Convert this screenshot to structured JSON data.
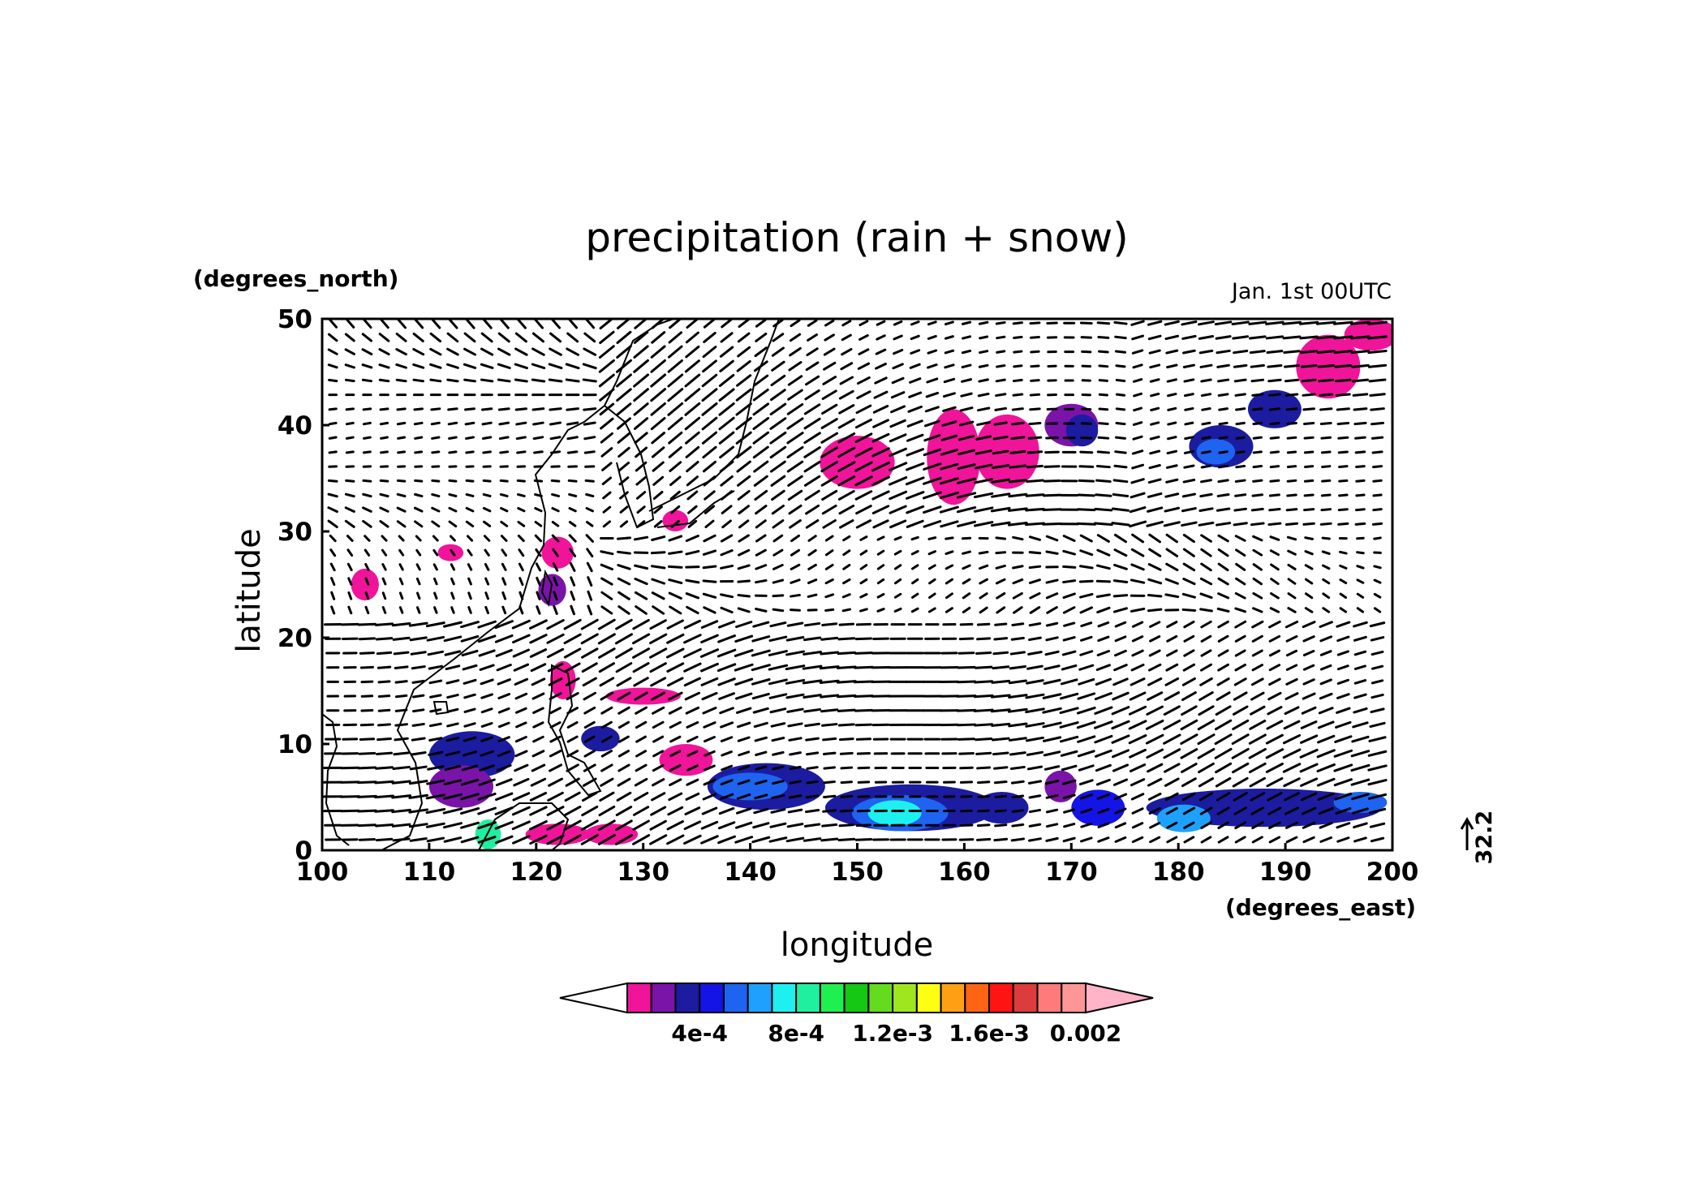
{
  "chart_data": {
    "type": "heatmap",
    "title": "precipitation (rain + snow)",
    "time_stamp": "Jan. 1st 00UTC",
    "xlabel": "longitude",
    "ylabel": "latitude",
    "x_unit": "(degrees_east)",
    "y_unit": "(degrees_north)",
    "xlim": [
      100,
      200
    ],
    "ylim": [
      0,
      50
    ],
    "x_ticks": [
      "100",
      "110",
      "120",
      "130",
      "140",
      "150",
      "160",
      "170",
      "180",
      "190",
      "200"
    ],
    "y_ticks": [
      "0",
      "10",
      "20",
      "30",
      "40",
      "50"
    ],
    "overlay": "wind vectors (arrows) and coastlines",
    "reference_vector": "32.2",
    "colorbar": {
      "orientation": "horizontal",
      "extend": "both",
      "levels": [
        0.0001,
        0.0002,
        0.0003,
        0.0004,
        0.0005,
        0.0006,
        0.0007,
        0.0008,
        0.0009,
        0.001,
        0.0011,
        0.0012,
        0.0013,
        0.0014,
        0.0015,
        0.0016,
        0.0017,
        0.0018,
        0.0019,
        0.002
      ],
      "colors": [
        "#ffffff",
        "#f0149a",
        "#7a14a8",
        "#1c1ca0",
        "#1414e6",
        "#1e64f0",
        "#1ea0ff",
        "#1ef0f0",
        "#1ef0a0",
        "#1ef050",
        "#14c814",
        "#64dc1e",
        "#a0e61e",
        "#ffff14",
        "#ffa014",
        "#ff6414",
        "#ff1414",
        "#dc3c3c",
        "#ff7a7a",
        "#ff9696",
        "#ffb4c8"
      ],
      "tick_labels": [
        {
          "value": 0.0004,
          "text": "4e-4"
        },
        {
          "value": 0.0008,
          "text": "8e-4"
        },
        {
          "value": 0.0012,
          "text": "1.2e-3"
        },
        {
          "value": 0.0016,
          "text": "1.6e-3"
        },
        {
          "value": 0.002,
          "text": "0.002"
        }
      ]
    },
    "precip_regions": [
      {
        "lon": 114,
        "lat": 9,
        "rx": 4,
        "ry": 2.2,
        "level": 3
      },
      {
        "lon": 113,
        "lat": 6,
        "rx": 3,
        "ry": 2,
        "level": 2
      },
      {
        "lon": 115.5,
        "lat": 1.5,
        "rx": 1.2,
        "ry": 1.4,
        "level": 8
      },
      {
        "lon": 122,
        "lat": 1.5,
        "rx": 3,
        "ry": 1,
        "level": 1
      },
      {
        "lon": 127,
        "lat": 1.5,
        "rx": 2.5,
        "ry": 1,
        "level": 1
      },
      {
        "lon": 126,
        "lat": 10.5,
        "rx": 1.8,
        "ry": 1.2,
        "level": 3
      },
      {
        "lon": 122,
        "lat": 28,
        "rx": 1.5,
        "ry": 1.5,
        "level": 1
      },
      {
        "lon": 121.5,
        "lat": 24.5,
        "rx": 1.3,
        "ry": 1.5,
        "level": 2
      },
      {
        "lon": 104,
        "lat": 25,
        "rx": 1.3,
        "ry": 1.5,
        "level": 1
      },
      {
        "lon": 112,
        "lat": 28,
        "rx": 1.2,
        "ry": 0.8,
        "level": 1
      },
      {
        "lon": 122.5,
        "lat": 16,
        "rx": 1.2,
        "ry": 1.8,
        "level": 1
      },
      {
        "lon": 130,
        "lat": 14.5,
        "rx": 3.5,
        "ry": 0.8,
        "level": 1
      },
      {
        "lon": 133,
        "lat": 31,
        "rx": 1.2,
        "ry": 1,
        "level": 1
      },
      {
        "lon": 141.5,
        "lat": 6,
        "rx": 5.5,
        "ry": 2.2,
        "level": 3
      },
      {
        "lon": 140,
        "lat": 6,
        "rx": 3.5,
        "ry": 1.3,
        "level": 5
      },
      {
        "lon": 134,
        "lat": 8.5,
        "rx": 2.5,
        "ry": 1.5,
        "level": 1
      },
      {
        "lon": 155,
        "lat": 4,
        "rx": 8,
        "ry": 2.2,
        "level": 3
      },
      {
        "lon": 154,
        "lat": 3.5,
        "rx": 4.5,
        "ry": 1.7,
        "level": 5
      },
      {
        "lon": 153.5,
        "lat": 3.5,
        "rx": 2.5,
        "ry": 1.2,
        "level": 7
      },
      {
        "lon": 163.5,
        "lat": 4,
        "rx": 2.5,
        "ry": 1.5,
        "level": 3
      },
      {
        "lon": 169,
        "lat": 6,
        "rx": 1.5,
        "ry": 1.5,
        "level": 2
      },
      {
        "lon": 172.5,
        "lat": 4,
        "rx": 2.5,
        "ry": 1.7,
        "level": 4
      },
      {
        "lon": 188,
        "lat": 4,
        "rx": 11,
        "ry": 1.8,
        "level": 3
      },
      {
        "lon": 180.5,
        "lat": 3,
        "rx": 2.5,
        "ry": 1.3,
        "level": 6
      },
      {
        "lon": 197,
        "lat": 4.5,
        "rx": 2.5,
        "ry": 1,
        "level": 5
      },
      {
        "lon": 150,
        "lat": 36.5,
        "rx": 3.5,
        "ry": 2.5,
        "level": 1
      },
      {
        "lon": 159,
        "lat": 37,
        "rx": 2.5,
        "ry": 4.5,
        "level": 1
      },
      {
        "lon": 164,
        "lat": 37.5,
        "rx": 3,
        "ry": 3.5,
        "level": 1
      },
      {
        "lon": 170,
        "lat": 40,
        "rx": 2.5,
        "ry": 2,
        "level": 2
      },
      {
        "lon": 171,
        "lat": 39.5,
        "rx": 1.5,
        "ry": 1.5,
        "level": 3
      },
      {
        "lon": 184,
        "lat": 38,
        "rx": 3,
        "ry": 2,
        "level": 3
      },
      {
        "lon": 183.5,
        "lat": 37.5,
        "rx": 1.8,
        "ry": 1.2,
        "level": 5
      },
      {
        "lon": 189,
        "lat": 41.5,
        "rx": 2.5,
        "ry": 1.8,
        "level": 3
      },
      {
        "lon": 194,
        "lat": 45.5,
        "rx": 3,
        "ry": 3,
        "level": 1
      },
      {
        "lon": 198,
        "lat": 48.5,
        "rx": 2.5,
        "ry": 1.5,
        "level": 1
      }
    ]
  }
}
